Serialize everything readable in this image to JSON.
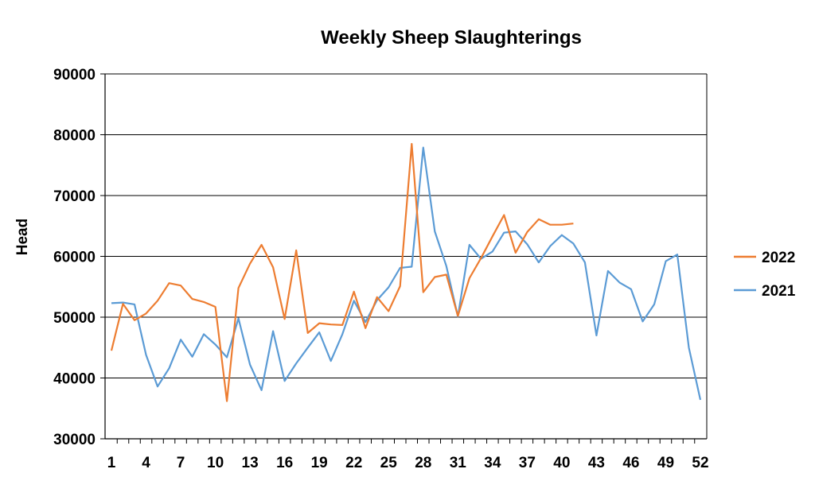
{
  "chart_data": {
    "type": "line",
    "title": "Weekly Sheep Slaughterings",
    "xlabel": "",
    "ylabel": "Head",
    "ylim": [
      30000,
      90000
    ],
    "yticks": [
      30000,
      40000,
      50000,
      60000,
      70000,
      80000,
      90000
    ],
    "xlim": [
      1,
      52
    ],
    "xticks": [
      1,
      4,
      7,
      10,
      13,
      16,
      19,
      22,
      25,
      28,
      31,
      34,
      37,
      40,
      43,
      46,
      49,
      52
    ],
    "grid": "horizontal",
    "legend_position": "right",
    "series": [
      {
        "name": "2022",
        "color": "#ED7D31",
        "x": [
          1,
          2,
          3,
          4,
          5,
          6,
          7,
          8,
          9,
          10,
          11,
          12,
          13,
          14,
          15,
          16,
          17,
          18,
          19,
          20,
          21,
          22,
          23,
          24,
          25,
          26,
          27,
          28,
          29,
          30,
          31,
          32,
          33,
          34,
          35,
          36,
          37,
          38,
          39,
          40,
          41
        ],
        "values": [
          44500,
          52200,
          49500,
          50600,
          52700,
          55600,
          55200,
          53000,
          52500,
          51700,
          36200,
          54800,
          58800,
          61900,
          58200,
          49700,
          61000,
          47400,
          49000,
          48800,
          48700,
          54200,
          48200,
          53300,
          51000,
          55100,
          78500,
          54100,
          56600,
          57000,
          50200,
          56400,
          59700,
          63300,
          66800,
          60600,
          64000,
          66100,
          65200,
          65200,
          65400
        ]
      },
      {
        "name": "2021",
        "color": "#5B9BD5",
        "x": [
          1,
          2,
          3,
          4,
          5,
          6,
          7,
          8,
          9,
          10,
          11,
          12,
          13,
          14,
          15,
          16,
          17,
          18,
          19,
          20,
          21,
          22,
          23,
          24,
          25,
          26,
          27,
          28,
          29,
          30,
          31,
          32,
          33,
          34,
          35,
          36,
          37,
          38,
          39,
          40,
          41,
          42,
          43,
          44,
          45,
          46,
          47,
          48,
          49,
          50,
          51,
          52
        ],
        "values": [
          52300,
          52400,
          52100,
          43800,
          38600,
          41600,
          46300,
          43500,
          47200,
          45500,
          43400,
          49800,
          42200,
          38000,
          47700,
          39500,
          42400,
          45000,
          47500,
          42800,
          47200,
          52700,
          49200,
          52800,
          54900,
          58100,
          58300,
          77900,
          64100,
          58400,
          50100,
          61900,
          59600,
          60800,
          63900,
          64100,
          62000,
          59000,
          61700,
          63500,
          62100,
          59000,
          47000,
          57600,
          55700,
          54600,
          49300,
          52100,
          59200,
          60300,
          45000,
          36400
        ]
      }
    ]
  }
}
